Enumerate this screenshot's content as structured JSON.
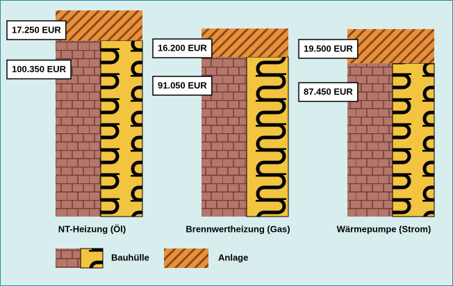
{
  "chart_data": {
    "type": "bar",
    "stacked": true,
    "categories": [
      "NT-Heizung (Öl)",
      "Brennwertheizung (Gas)",
      "Wärmepumpe (Strom)"
    ],
    "series": [
      {
        "name": "Bauhülle",
        "color": "#b5766b",
        "values": [
          100350,
          91050,
          87450
        ],
        "value_labels": [
          "100.350 EUR",
          "91.050 EUR",
          "87.450 EUR"
        ]
      },
      {
        "name": "Anlage",
        "color": "#e8913a",
        "values": [
          17250,
          16200,
          19500
        ],
        "value_labels": [
          "17.250 EUR",
          "16.200 EUR",
          "19.500 EUR"
        ]
      }
    ]
  }
}
